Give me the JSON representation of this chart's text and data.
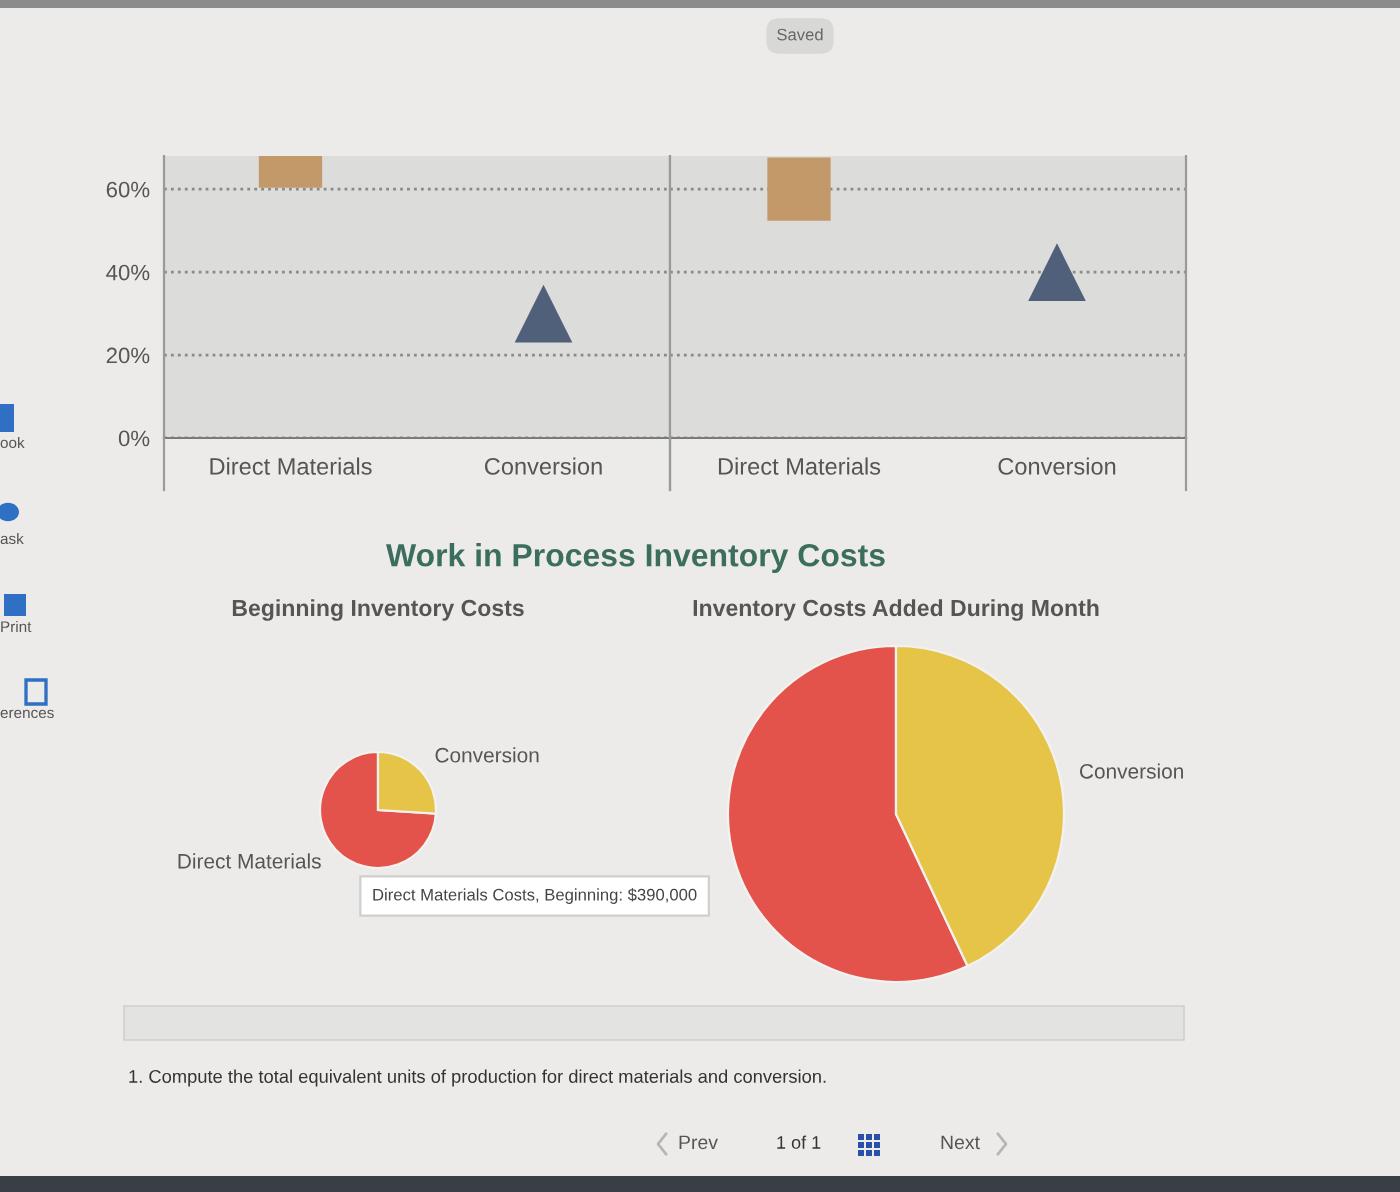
{
  "chart_data": [
    {
      "type": "scatter",
      "categories": [
        "Direct Materials",
        "Conversion"
      ],
      "series": [
        {
          "color": "#c4996a",
          "marker": "square",
          "values": [
            68,
            null
          ]
        },
        {
          "color": "#51607a",
          "marker": "triangle",
          "values": [
            null,
            30
          ]
        }
      ],
      "ylim": [
        0,
        68
      ],
      "yticks": [
        {
          "value": 0,
          "label": "0%"
        },
        {
          "value": 20,
          "label": "20%"
        },
        {
          "value": 40,
          "label": "40%"
        },
        {
          "value": 60,
          "label": "60%"
        }
      ],
      "grid": "y"
    },
    {
      "type": "scatter",
      "categories": [
        "Direct Materials",
        "Conversion"
      ],
      "series": [
        {
          "color": "#c4996a",
          "marker": "square",
          "values": [
            60,
            null
          ]
        },
        {
          "color": "#51607a",
          "marker": "triangle",
          "values": [
            null,
            40
          ]
        }
      ],
      "ylim": [
        0,
        68
      ],
      "yticks": [
        0,
        20,
        40,
        60
      ],
      "grid": "y",
      "tick_labels": "x"
    },
    {
      "type": "pie",
      "title": "Work in Process Inventory Costs",
      "subtitle": "Beginning Inventory Costs",
      "categories": [
        "Direct Materials",
        "Conversion"
      ],
      "values": [
        74,
        26
      ],
      "colors": [
        "#e4534b",
        "#e5c447"
      ],
      "annotations": [
        "Direct Materials Costs, Beginning: $390,000"
      ]
    },
    {
      "type": "pie",
      "subtitle": "Inventory Costs Added During Month",
      "categories": [
        null,
        "Conversion"
      ],
      "values": [
        57,
        43
      ],
      "colors": [
        "#e4534b",
        "#e5c447"
      ]
    },
    {
      "type": "other",
      "annotations": [
        "Saved",
        "ook",
        "ask",
        "Print",
        "erences",
        "1. Compute the total equivalent units of production for direct materials and conversion.",
        "Prev",
        "1 of 1",
        "Next"
      ]
    }
  ]
}
